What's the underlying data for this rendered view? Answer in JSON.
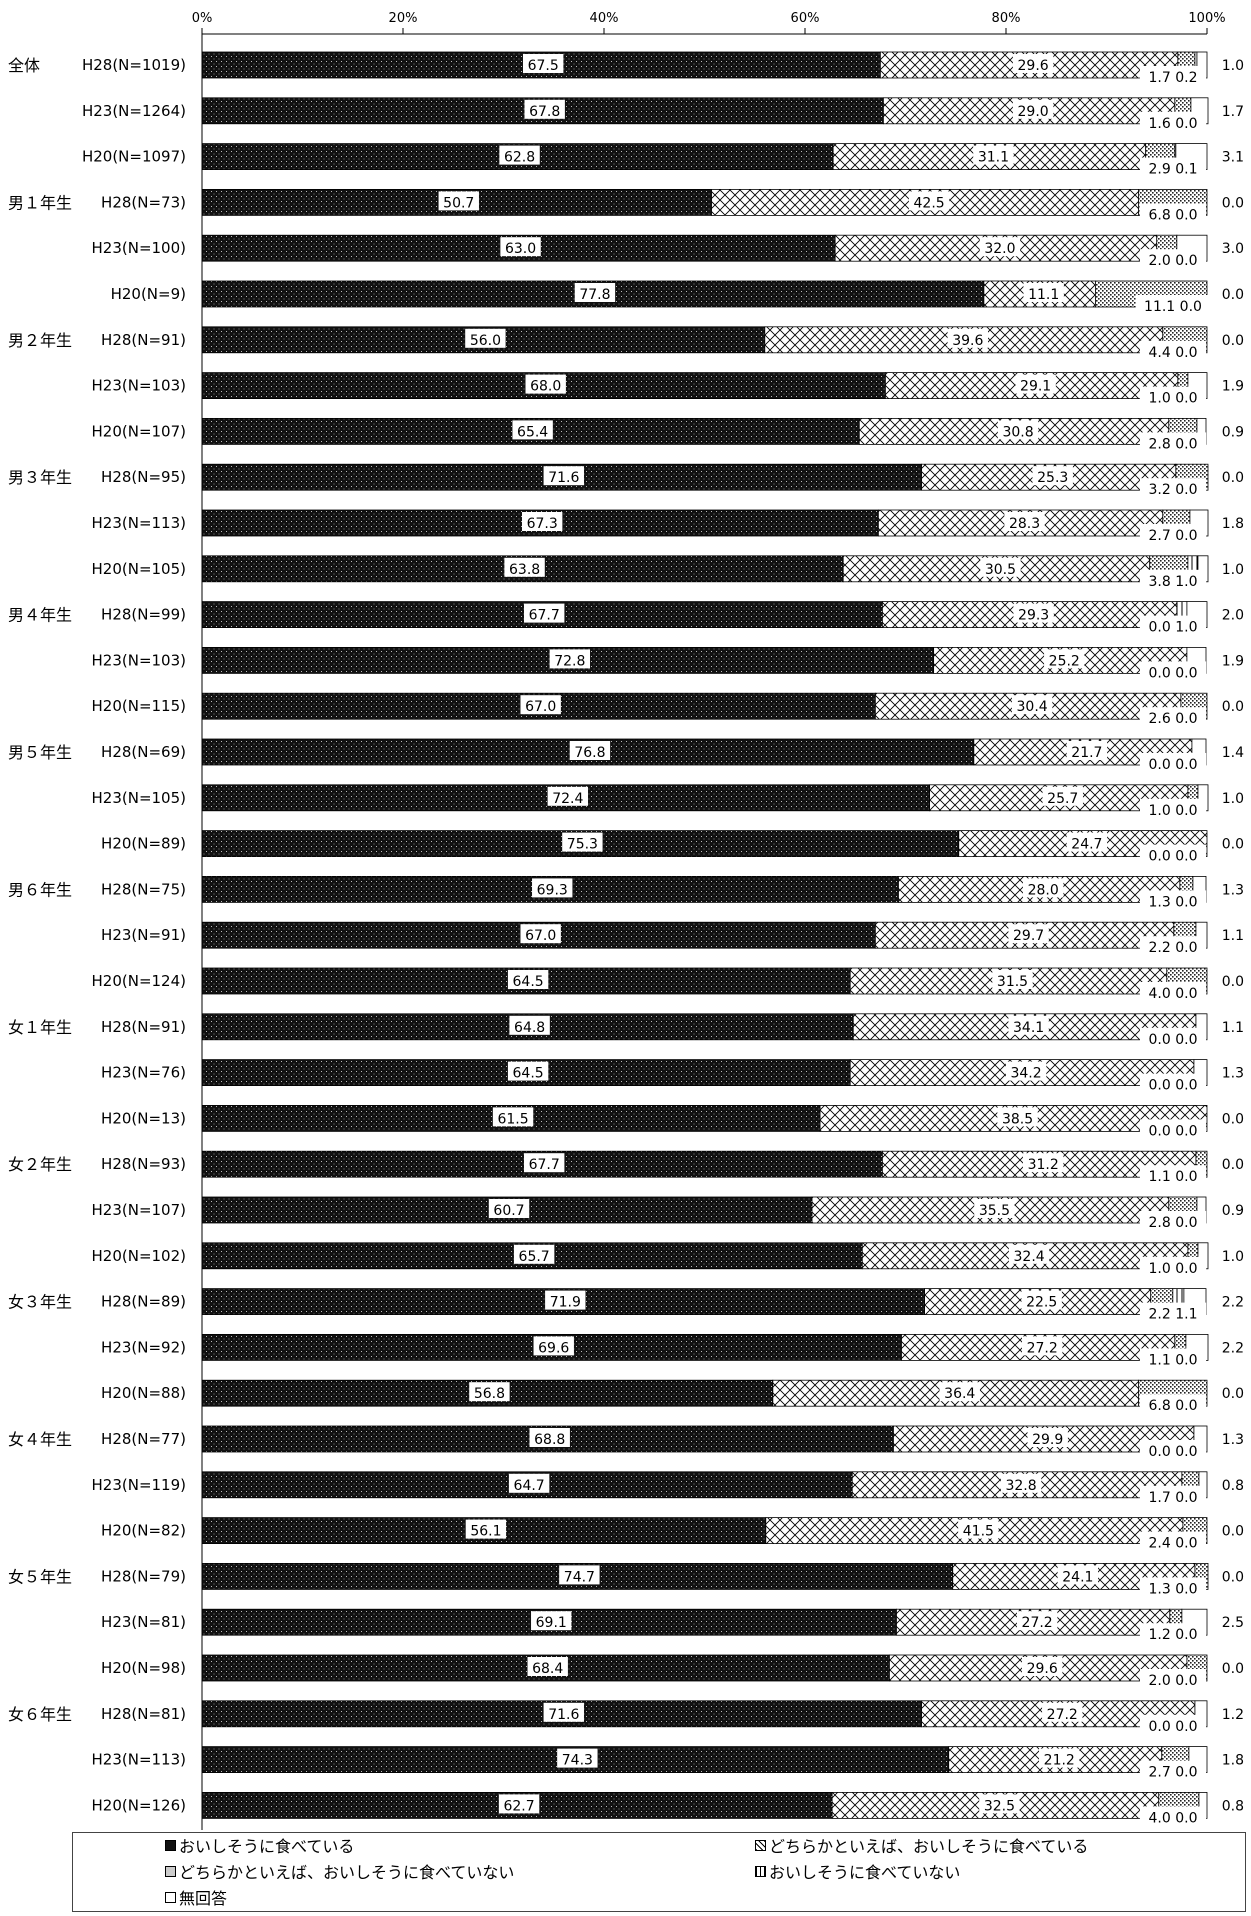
{
  "chart_data": {
    "type": "bar",
    "orientation": "horizontal",
    "stacked": true,
    "xlim": [
      0,
      100
    ],
    "x_ticks": [
      "0%",
      "20%",
      "40%",
      "60%",
      "80%",
      "100%"
    ],
    "legend_position": "bottom",
    "series": [
      {
        "name": "おいしそうに食べている",
        "color": "#111111",
        "values": [
          67.5,
          67.8,
          62.8,
          50.7,
          63.0,
          77.8,
          56.0,
          68.0,
          65.4,
          71.6,
          67.3,
          63.8,
          67.7,
          72.8,
          67.0,
          76.8,
          72.4,
          75.3,
          69.3,
          67.0,
          64.5,
          64.8,
          64.5,
          61.5,
          67.7,
          60.7,
          65.7,
          71.9,
          69.6,
          56.8,
          68.8,
          64.7,
          56.1,
          74.7,
          69.1,
          68.4,
          71.6,
          74.3,
          62.7
        ]
      },
      {
        "name": "どちらかといえば、おいしそうに食べている",
        "color": "#ffffff",
        "values": [
          29.6,
          29.0,
          31.1,
          42.5,
          32.0,
          11.1,
          39.6,
          29.1,
          30.8,
          25.3,
          28.3,
          30.5,
          29.3,
          25.2,
          30.4,
          21.7,
          25.7,
          24.7,
          28.0,
          29.7,
          31.5,
          34.1,
          34.2,
          38.5,
          31.2,
          35.5,
          32.4,
          22.5,
          27.2,
          36.4,
          29.9,
          32.8,
          41.5,
          24.1,
          27.2,
          29.6,
          27.2,
          21.2,
          32.5
        ]
      },
      {
        "name": "どちらかといえば、おいしそうに食べていない",
        "color": "#dddddd",
        "values": [
          1.7,
          1.6,
          2.9,
          6.8,
          2.0,
          11.1,
          4.4,
          1.0,
          2.8,
          3.2,
          2.7,
          3.8,
          0.0,
          0.0,
          2.6,
          0.0,
          1.0,
          0.0,
          1.3,
          2.2,
          4.0,
          0.0,
          0.0,
          0.0,
          1.1,
          2.8,
          1.0,
          2.2,
          1.1,
          6.8,
          0.0,
          1.7,
          2.4,
          1.3,
          1.2,
          2.0,
          0.0,
          2.7,
          4.0
        ]
      },
      {
        "name": "おいしそうに食べていない",
        "color": "#ffffff",
        "values": [
          0.2,
          0.0,
          0.1,
          0.0,
          0.0,
          0.0,
          0.0,
          0.0,
          0.0,
          0.0,
          0.0,
          1.0,
          1.0,
          0.0,
          0.0,
          0.0,
          0.0,
          0.0,
          0.0,
          0.0,
          0.0,
          0.0,
          0.0,
          0.0,
          0.0,
          0.0,
          0.0,
          1.1,
          0.0,
          0.0,
          0.0,
          0.0,
          0.0,
          0.0,
          0.0,
          0.0,
          0.0,
          0.0,
          0.0
        ]
      },
      {
        "name": "無回答",
        "color": "#ffffff",
        "values": [
          1.0,
          1.7,
          3.1,
          0.0,
          3.0,
          0.0,
          0.0,
          1.9,
          0.9,
          0.0,
          1.8,
          1.0,
          2.0,
          1.9,
          0.0,
          1.4,
          1.0,
          0.0,
          1.3,
          1.1,
          0.0,
          1.1,
          1.3,
          0.0,
          0.0,
          0.9,
          1.0,
          2.2,
          2.2,
          0.0,
          1.3,
          0.8,
          0.0,
          0.0,
          2.5,
          0.0,
          1.2,
          1.8,
          0.8
        ]
      }
    ],
    "rows": [
      {
        "group": "全体",
        "label": "H28(N=1019)"
      },
      {
        "group": "",
        "label": "H23(N=1264)"
      },
      {
        "group": "",
        "label": "H20(N=1097)"
      },
      {
        "group": "男１年生",
        "label": "H28(N=73)"
      },
      {
        "group": "",
        "label": "H23(N=100)"
      },
      {
        "group": "",
        "label": "H20(N=9)"
      },
      {
        "group": "男２年生",
        "label": "H28(N=91)"
      },
      {
        "group": "",
        "label": "H23(N=103)"
      },
      {
        "group": "",
        "label": "H20(N=107)"
      },
      {
        "group": "男３年生",
        "label": "H28(N=95)"
      },
      {
        "group": "",
        "label": "H23(N=113)"
      },
      {
        "group": "",
        "label": "H20(N=105)"
      },
      {
        "group": "男４年生",
        "label": "H28(N=99)"
      },
      {
        "group": "",
        "label": "H23(N=103)"
      },
      {
        "group": "",
        "label": "H20(N=115)"
      },
      {
        "group": "男５年生",
        "label": "H28(N=69)"
      },
      {
        "group": "",
        "label": "H23(N=105)"
      },
      {
        "group": "",
        "label": "H20(N=89)"
      },
      {
        "group": "男６年生",
        "label": "H28(N=75)"
      },
      {
        "group": "",
        "label": "H23(N=91)"
      },
      {
        "group": "",
        "label": "H20(N=124)"
      },
      {
        "group": "女１年生",
        "label": "H28(N=91)"
      },
      {
        "group": "",
        "label": "H23(N=76)"
      },
      {
        "group": "",
        "label": "H20(N=13)"
      },
      {
        "group": "女２年生",
        "label": "H28(N=93)"
      },
      {
        "group": "",
        "label": "H23(N=107)"
      },
      {
        "group": "",
        "label": "H20(N=102)"
      },
      {
        "group": "女３年生",
        "label": "H28(N=89)"
      },
      {
        "group": "",
        "label": "H23(N=92)"
      },
      {
        "group": "",
        "label": "H20(N=88)"
      },
      {
        "group": "女４年生",
        "label": "H28(N=77)"
      },
      {
        "group": "",
        "label": "H23(N=119)"
      },
      {
        "group": "",
        "label": "H20(N=82)"
      },
      {
        "group": "女５年生",
        "label": "H28(N=79)"
      },
      {
        "group": "",
        "label": "H23(N=81)"
      },
      {
        "group": "",
        "label": "H20(N=98)"
      },
      {
        "group": "女６年生",
        "label": "H28(N=81)"
      },
      {
        "group": "",
        "label": "H23(N=113)"
      },
      {
        "group": "",
        "label": "H20(N=126)"
      }
    ]
  }
}
